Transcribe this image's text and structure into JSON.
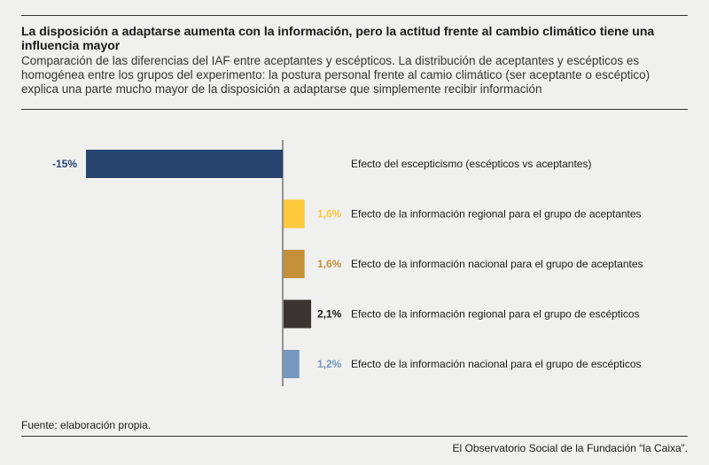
{
  "header": {
    "title": "La disposición a adaptarse aumenta con la información, pero la actitud frente al cambio climático tiene una influencia mayor",
    "subtitle": "Comparación de las diferencias del IAF entre aceptantes y escépticos. La distribución de aceptantes y escépticos es homogénea entre los grupos del experimento: la postura personal frente al camio climático (ser aceptante o escéptico) explica una parte mucho mayor de la disposición a adaptarse que simplemente recibir información"
  },
  "footer": {
    "source": "Fuente: elaboración propia.",
    "brand": "El Observatorio Social de la Fundación “la Caixa”."
  },
  "chart_data": {
    "type": "bar",
    "orientation": "horizontal",
    "title": "",
    "xlabel": "",
    "ylabel": "",
    "grid": false,
    "categories": [
      "Efecto del escepticismo (escépticos vs aceptantes)",
      "Efecto de la información regional para el grupo de aceptantes",
      "Efecto de la información nacional para el grupo de aceptantes",
      "Efecto de la información regional para el grupo de escépticos",
      "Efecto de la información nacional para el grupo de escépticos"
    ],
    "values": [
      -15,
      1.6,
      1.6,
      2.1,
      1.2
    ],
    "value_labels": [
      "-15%",
      "1,6%",
      "1,6%",
      "2,1%",
      "1,2%"
    ],
    "colors": [
      "#27446e",
      "#fdc93d",
      "#c4913a",
      "#3b3330",
      "#7798be"
    ],
    "label_colors": [
      "#27446e",
      "#fdc93d",
      "#c4913a",
      "#1a1a1a",
      "#7798be"
    ]
  }
}
